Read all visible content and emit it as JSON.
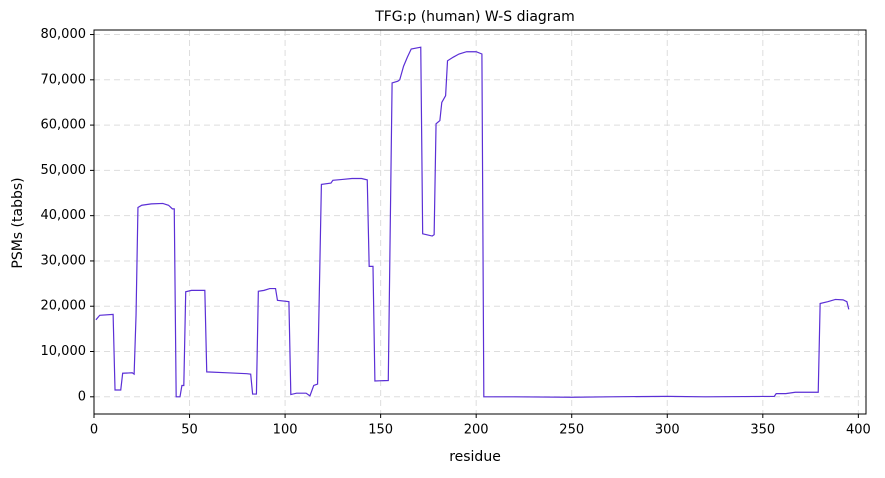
{
  "chart_data": {
    "type": "line",
    "title": "TFG:p (human) W-S diagram",
    "x_label": "residue",
    "y_label": "PSMs (tabbs)",
    "x": [
      1,
      3,
      10,
      11,
      14,
      15,
      20,
      21,
      22,
      23,
      25,
      30,
      36,
      39,
      41,
      42,
      43,
      45,
      46,
      47,
      48,
      51,
      58,
      59,
      70,
      80,
      82,
      83,
      85,
      86,
      89,
      92,
      95,
      96,
      102,
      103,
      106,
      111,
      113,
      115,
      117,
      119,
      124,
      125,
      130,
      135,
      140,
      143,
      144,
      146,
      147,
      154,
      156,
      159,
      160,
      162,
      164,
      166,
      171,
      172,
      174,
      177,
      178,
      179,
      181,
      182,
      184,
      185,
      188,
      191,
      195,
      200,
      203,
      204,
      220,
      250,
      270,
      300,
      320,
      356,
      357,
      362,
      367,
      379,
      380,
      384,
      388,
      392,
      394,
      395
    ],
    "values": [
      17000,
      18000,
      18200,
      1500,
      1500,
      5200,
      5300,
      5000,
      18000,
      41800,
      42300,
      42600,
      42700,
      42300,
      41500,
      41500,
      0,
      0,
      2500,
      2500,
      23200,
      23500,
      23500,
      5500,
      5300,
      5100,
      5000,
      600,
      600,
      23300,
      23500,
      23900,
      23900,
      21300,
      21000,
      500,
      800,
      800,
      200,
      2500,
      2800,
      46900,
      47200,
      47800,
      48000,
      48200,
      48200,
      47900,
      28800,
      28800,
      3500,
      3600,
      69300,
      69700,
      70000,
      73000,
      75000,
      76800,
      77200,
      36000,
      35800,
      35500,
      35800,
      60300,
      61000,
      65000,
      66500,
      74200,
      75000,
      75700,
      76200,
      76200,
      75700,
      0,
      0,
      -100,
      0,
      100,
      0,
      100,
      700,
      700,
      1000,
      1000,
      20600,
      21000,
      21500,
      21400,
      21000,
      19300
    ],
    "color": "#5b2fd6",
    "xlim": [
      0,
      404
    ],
    "ylim": [
      -3800,
      81000
    ],
    "xticks": [
      0,
      50,
      100,
      150,
      200,
      250,
      300,
      350,
      400
    ],
    "yticks": [
      0,
      {
        "value": 10000,
        "label": "10,000"
      },
      {
        "value": 20000,
        "label": "20,000"
      },
      {
        "value": 30000,
        "label": "30,000"
      },
      {
        "value": 40000,
        "label": "40,000"
      },
      {
        "value": 50000,
        "label": "50,000"
      },
      {
        "value": 60000,
        "label": "60,000"
      },
      {
        "value": 70000,
        "label": "70,000"
      },
      {
        "value": 80000,
        "label": "80,000"
      }
    ],
    "grid": true
  }
}
